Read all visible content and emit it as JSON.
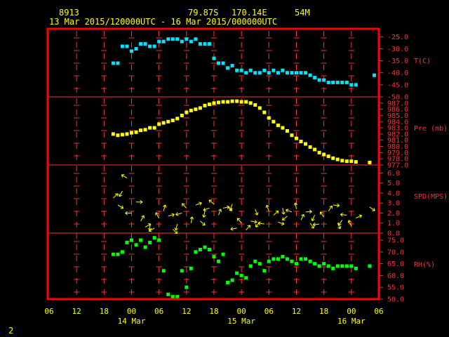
{
  "header": {
    "station_id": "8913",
    "lat": "79.87S",
    "lon": "170.14E",
    "elev": "54M",
    "time_range": "13 Mar 2015/120000UTC - 16 Mar 2015/000000UTC"
  },
  "page_number": "2",
  "colors": {
    "frame": "#ff0000",
    "grid": "#ff3030",
    "text": "#ffff00",
    "temperature": "#00e5ff",
    "pressure": "#ffff00",
    "wind": "#ffff00",
    "rh": "#00ff00",
    "background": "#000000"
  },
  "x_axis": {
    "hour_labels": [
      "06",
      "12",
      "18",
      "00",
      "06",
      "12",
      "18",
      "00",
      "06",
      "12",
      "18",
      "00",
      "06"
    ],
    "date_labels": [
      "14 Mar",
      "15 Mar",
      "16 Mar"
    ]
  },
  "chart_data": [
    {
      "type": "scatter",
      "label": "T(C)",
      "ylim": [
        -50,
        -22
      ],
      "ticks": [
        "-25.0",
        "-30.0",
        "-35.0",
        "-40.0",
        "-45.0",
        "-50.0"
      ],
      "x": [
        14,
        15,
        16,
        17,
        18,
        19,
        20,
        21,
        22,
        23,
        24,
        25,
        26,
        27,
        28,
        29,
        30,
        31,
        32,
        33,
        34,
        35,
        36,
        37,
        38,
        39,
        40,
        41,
        42,
        43,
        44,
        45,
        46,
        47,
        48,
        49,
        50,
        51,
        52,
        53,
        54,
        55,
        56,
        57,
        58,
        59,
        60,
        61,
        62,
        63,
        64,
        65,
        66,
        67,
        71
      ],
      "y": [
        -36,
        -36,
        -29,
        -29,
        -31,
        -30,
        -28,
        -28,
        -29,
        -29,
        -27,
        -27,
        -26,
        -26,
        -26,
        -27,
        -26,
        -27,
        -26,
        -28,
        -28,
        -28,
        -34,
        -36,
        -36,
        -38,
        -37,
        -39,
        -39,
        -40,
        -39,
        -40,
        -40,
        -39,
        -40,
        -39,
        -40,
        -39,
        -40,
        -40,
        -40,
        -40,
        -40,
        -41,
        -42,
        -43,
        -43,
        -44,
        -44,
        -44,
        -44,
        -44,
        -45,
        -45,
        -41
      ]
    },
    {
      "type": "scatter",
      "label": "Pre (mb)",
      "ylim": [
        977,
        988
      ],
      "ticks": [
        "987.0",
        "986.0",
        "985.0",
        "984.0",
        "983.0",
        "982.0",
        "981.0",
        "980.0",
        "979.0",
        "978.0",
        "977.0"
      ],
      "x": [
        14,
        15,
        16,
        17,
        18,
        19,
        20,
        21,
        22,
        23,
        24,
        25,
        26,
        27,
        28,
        29,
        30,
        31,
        32,
        33,
        34,
        35,
        36,
        37,
        38,
        39,
        40,
        41,
        42,
        43,
        44,
        45,
        46,
        47,
        48,
        49,
        50,
        51,
        52,
        53,
        54,
        55,
        56,
        57,
        58,
        59,
        60,
        61,
        62,
        63,
        64,
        65,
        66,
        67,
        70
      ],
      "y": [
        982.0,
        981.8,
        981.9,
        982.0,
        982.2,
        982.3,
        982.6,
        982.7,
        983.0,
        983.0,
        983.6,
        983.8,
        984.0,
        984.2,
        984.5,
        985.0,
        985.5,
        985.8,
        986.0,
        986.2,
        986.6,
        986.8,
        987.0,
        987.1,
        987.2,
        987.2,
        987.3,
        987.3,
        987.2,
        987.2,
        987.0,
        986.7,
        986.2,
        985.5,
        984.6,
        984.0,
        983.4,
        983.0,
        982.5,
        981.8,
        981.3,
        980.8,
        980.4,
        979.9,
        979.5,
        979.0,
        978.7,
        978.4,
        978.1,
        977.9,
        977.7,
        977.6,
        977.6,
        977.5,
        977.4
      ]
    },
    {
      "type": "scatter",
      "label": "SPD(MPS)",
      "ylim": [
        0,
        6.8
      ],
      "ticks": [
        "6.0",
        "5.0",
        "4.0",
        "3.0",
        "2.0",
        "1.0",
        "0.0"
      ],
      "x": [
        14,
        15,
        16,
        17,
        18,
        19,
        20,
        21,
        22,
        23,
        24,
        25,
        26,
        27,
        28,
        29,
        30,
        31,
        32,
        33,
        34,
        35,
        36,
        37,
        38,
        39,
        40,
        41,
        42,
        43,
        44,
        45,
        46,
        47,
        48,
        49,
        50,
        51,
        52,
        53,
        54,
        55,
        56,
        57,
        58,
        59,
        60,
        61,
        62,
        63,
        64,
        65,
        66,
        67,
        70
      ],
      "y": [
        3.5,
        2.8,
        4.2,
        5.5,
        2.0,
        3.1,
        1.2,
        0.6,
        0.9,
        0.5,
        1.5,
        2.2,
        1.7,
        0.4,
        0.9,
        2.0,
        2.5,
        1.0,
        2.8,
        1.2,
        2.2,
        2.5,
        2.9,
        1.8,
        2.5,
        2.7,
        2.9,
        0.5,
        1.0,
        0.3,
        1.2,
        2.4,
        1.1,
        0.9,
        2.2,
        1.8,
        1.1,
        2.5,
        1.7,
        2.1,
        2.4,
        1.3,
        2.1,
        1.0,
        1.8,
        0.9,
        1.6,
        2.2,
        2.8,
        1.0,
        1.3,
        1.8,
        0.7,
        1.5,
        2.6
      ],
      "wind_dir_deg": [
        45,
        120,
        210,
        300,
        270,
        90,
        30,
        60,
        180,
        240,
        330,
        15,
        75,
        135,
        195,
        255,
        315,
        10,
        70,
        130,
        190,
        250,
        310,
        20,
        80,
        140,
        200,
        260,
        320,
        40,
        100,
        160,
        220,
        280,
        340,
        50,
        110,
        170,
        230,
        290,
        350,
        25,
        85,
        145,
        205,
        265,
        325,
        35,
        95,
        155,
        215,
        275,
        335,
        65,
        125
      ]
    },
    {
      "type": "scatter",
      "label": "RH(%)",
      "ylim": [
        50,
        78
      ],
      "ticks": [
        "75.0",
        "70.0",
        "65.0",
        "60.0",
        "55.0",
        "50.0"
      ],
      "x": [
        14,
        15,
        16,
        17,
        18,
        19,
        20,
        21,
        22,
        23,
        24,
        25,
        26,
        27,
        28,
        29,
        30,
        31,
        32,
        33,
        34,
        35,
        36,
        37,
        38,
        39,
        40,
        41,
        42,
        43,
        44,
        45,
        46,
        47,
        48,
        49,
        50,
        51,
        52,
        53,
        54,
        55,
        56,
        57,
        58,
        59,
        60,
        61,
        62,
        63,
        64,
        65,
        66,
        67,
        70
      ],
      "y": [
        69,
        69,
        70,
        74,
        75,
        73,
        75,
        72,
        74,
        76,
        75,
        62,
        52,
        51,
        51,
        62,
        55,
        63,
        70,
        71,
        72,
        71,
        68,
        66,
        69,
        57,
        58,
        61,
        60,
        59,
        64,
        66,
        65,
        62,
        66,
        67,
        67,
        68,
        67,
        66,
        65,
        67,
        67,
        66,
        65,
        64,
        65,
        64,
        63,
        64,
        64,
        64,
        64,
        63,
        64
      ]
    }
  ]
}
